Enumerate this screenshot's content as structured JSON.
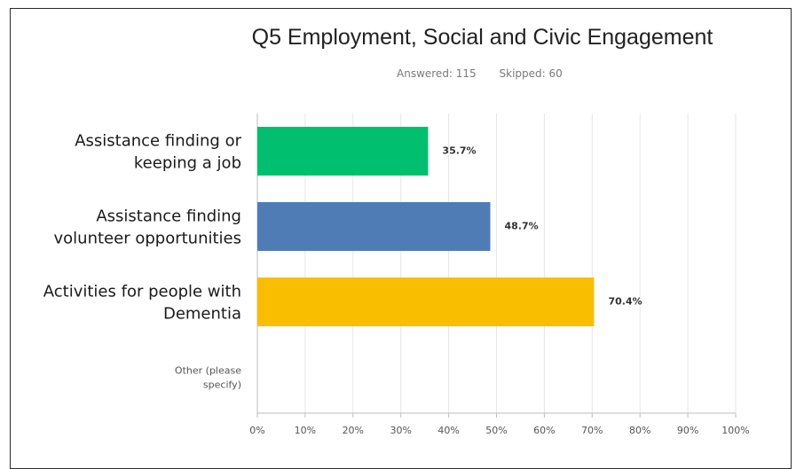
{
  "chart_data": {
    "type": "bar",
    "orientation": "horizontal",
    "title": "Q5 Employment, Social and Civic Engagement",
    "answered_label": "Answered: 115",
    "skipped_label": "Skipped: 60",
    "categories": [
      [
        "Assistance finding or",
        "keeping a job"
      ],
      [
        "Assistance finding",
        "volunteer opportunities"
      ],
      [
        "Activities for people with",
        "Dementia"
      ],
      [
        "Other (please",
        "specify)"
      ]
    ],
    "values": [
      35.7,
      48.7,
      70.4,
      0
    ],
    "value_labels": [
      "35.7%",
      "48.7%",
      "70.4%",
      ""
    ],
    "colors": [
      "#00bf6f",
      "#507cb6",
      "#f9be00",
      "#999999"
    ],
    "xlim": [
      0,
      100
    ],
    "xticks": [
      "0%",
      "10%",
      "20%",
      "30%",
      "40%",
      "50%",
      "60%",
      "70%",
      "80%",
      "90%",
      "100%"
    ],
    "grid": true
  }
}
